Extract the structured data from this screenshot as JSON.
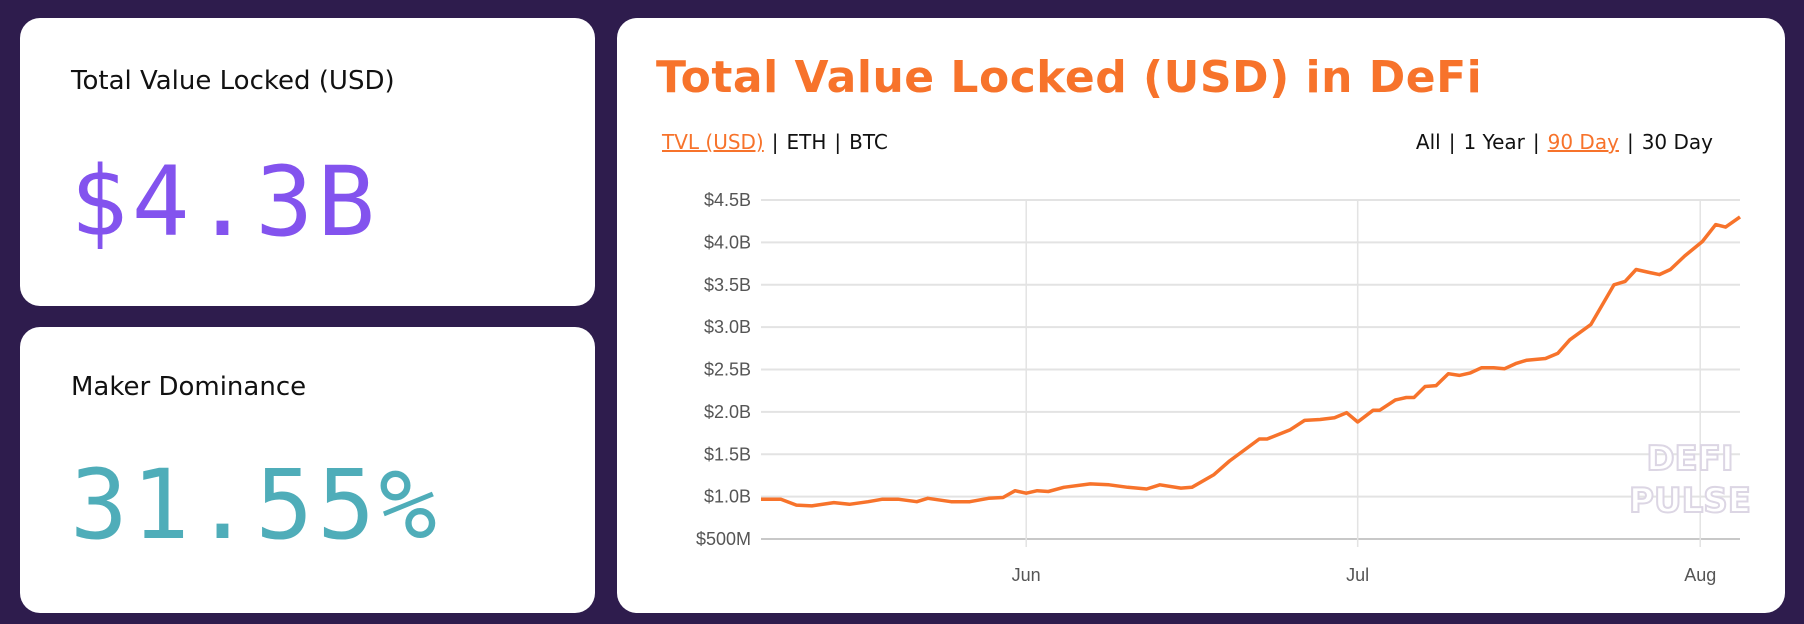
{
  "cards": {
    "tvl": {
      "label": "Total Value Locked (USD)",
      "value": "$4.3B"
    },
    "maker": {
      "label": "Maker Dominance",
      "value": "31.55%"
    }
  },
  "chart_panel": {
    "title": "Total Value Locked (USD) in DeFi",
    "currency_options": [
      "TVL (USD)",
      "ETH",
      "BTC"
    ],
    "range_options": [
      "All",
      "1 Year",
      "90 Day",
      "30 Day"
    ],
    "separator": "|",
    "watermark": [
      "DEFI",
      "PULSE"
    ]
  },
  "colors": {
    "accent": "#f7732b",
    "tvl": "#8353ee",
    "maker": "#4fadb9",
    "background": "#2e1c4d"
  },
  "chart_data": {
    "type": "line",
    "title": "Total Value Locked (USD) in DeFi",
    "xlabel": "",
    "ylabel": "",
    "x_unit": "days since start of 90-day window",
    "xlim": [
      0,
      88.6
    ],
    "ylim": [
      0.5,
      4.5
    ],
    "grid": true,
    "y_ticks": [
      {
        "v": 4.5,
        "label": "$4.5B"
      },
      {
        "v": 4.0,
        "label": "$4.0B"
      },
      {
        "v": 3.5,
        "label": "$3.5B"
      },
      {
        "v": 3.0,
        "label": "$3.0B"
      },
      {
        "v": 2.5,
        "label": "$2.5B"
      },
      {
        "v": 2.0,
        "label": "$2.0B"
      },
      {
        "v": 1.5,
        "label": "$1.5B"
      },
      {
        "v": 1.0,
        "label": "$1.0B"
      },
      {
        "v": 0.5,
        "label": "$500M"
      }
    ],
    "x_ticks": [
      {
        "v": 24,
        "label": "Jun"
      },
      {
        "v": 54,
        "label": "Jul"
      },
      {
        "v": 85,
        "label": "Aug"
      }
    ],
    "series": [
      {
        "name": "TVL (USD, billions)",
        "color": "#f7732b",
        "x": [
          0,
          1.8,
          3.2,
          4.6,
          6.6,
          8.0,
          9.7,
          11.0,
          12.4,
          14.1,
          15.1,
          17.2,
          18.9,
          20.6,
          21.9,
          23.0,
          24.0,
          25.0,
          26.0,
          27.4,
          29.8,
          31.5,
          33.2,
          34.9,
          36.1,
          38.0,
          39.0,
          41.0,
          42.4,
          45.1,
          45.8,
          47.9,
          49.2,
          50.6,
          51.9,
          53.0,
          54.0,
          55.4,
          56.0,
          57.4,
          58.4,
          59.1,
          60.1,
          61.1,
          62.2,
          63.2,
          64.2,
          65.2,
          66.3,
          67.3,
          68.3,
          69.3,
          71.0,
          72.1,
          73.2,
          75.1,
          77.2,
          78.2,
          79.2,
          80.2,
          81.3,
          82.3,
          83.6,
          85.2,
          86.4,
          87.3,
          88.6
        ],
        "y": [
          0.97,
          0.97,
          0.9,
          0.89,
          0.93,
          0.91,
          0.94,
          0.97,
          0.97,
          0.94,
          0.98,
          0.94,
          0.94,
          0.98,
          0.99,
          1.07,
          1.04,
          1.07,
          1.06,
          1.11,
          1.15,
          1.14,
          1.11,
          1.09,
          1.14,
          1.1,
          1.11,
          1.26,
          1.42,
          1.68,
          1.68,
          1.79,
          1.9,
          1.91,
          1.93,
          1.99,
          1.88,
          2.02,
          2.02,
          2.14,
          2.17,
          2.17,
          2.3,
          2.31,
          2.45,
          2.43,
          2.46,
          2.52,
          2.52,
          2.51,
          2.57,
          2.61,
          2.63,
          2.69,
          2.85,
          3.03,
          3.5,
          3.54,
          3.68,
          3.65,
          3.62,
          3.68,
          3.84,
          4.01,
          4.21,
          4.18,
          4.3
        ]
      }
    ]
  }
}
